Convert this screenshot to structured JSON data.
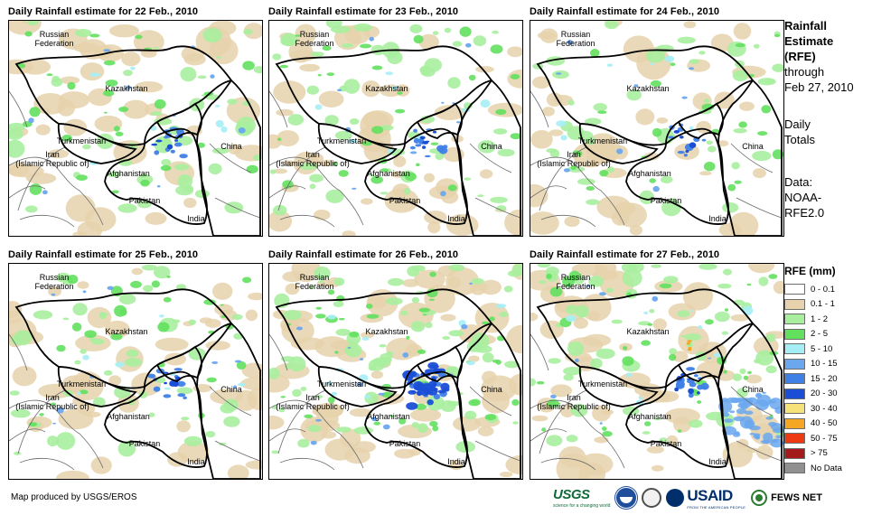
{
  "panels": [
    {
      "title": "Daily Rainfall estimate for 22 Feb., 2010",
      "seed": 11,
      "wet": 0.9
    },
    {
      "title": "Daily Rainfall estimate for 23 Feb., 2010",
      "seed": 23,
      "wet": 1.0
    },
    {
      "title": "Daily Rainfall estimate for 24 Feb., 2010",
      "seed": 37,
      "wet": 0.8
    },
    {
      "title": "Daily Rainfall estimate for 25 Feb., 2010",
      "seed": 41,
      "wet": 0.9
    },
    {
      "title": "Daily Rainfall estimate for 26 Feb., 2010",
      "seed": 53,
      "wet": 1.3
    },
    {
      "title": "Daily Rainfall estimate for 27 Feb., 2010",
      "seed": 67,
      "wet": 1.1
    }
  ],
  "map_labels": {
    "russia": "Russian\nFederation",
    "kazakhstan": "Kazakhstan",
    "turkmenistan": "Turkmenistan",
    "iran": "Iran\n(Islamic Republic of)",
    "afghanistan": "Afghanistan",
    "pakistan": "Pakistan",
    "china": "China",
    "india": "India"
  },
  "sidebar": {
    "title_line1": "Rainfall",
    "title_line2": "Estimate",
    "title_line3": "(RFE)",
    "through_line1": "through",
    "through_line2": "Feb 27, 2010",
    "totals_line1": "Daily",
    "totals_line2": "Totals",
    "data_line1": "Data:",
    "data_line2": "NOAA-",
    "data_line3": "RFE2.0"
  },
  "legend": {
    "title": "RFE (mm)",
    "items": [
      {
        "label": "0 - 0.1",
        "color": "#ffffff"
      },
      {
        "label": "0.1 - 1",
        "color": "#e6d2ac"
      },
      {
        "label": "1 - 2",
        "color": "#a8ee9e"
      },
      {
        "label": "2 - 5",
        "color": "#62e05e"
      },
      {
        "label": "5 - 10",
        "color": "#a6eef6"
      },
      {
        "label": "10 - 15",
        "color": "#6aa7ee"
      },
      {
        "label": "15 - 20",
        "color": "#3f7fe6"
      },
      {
        "label": "20 - 30",
        "color": "#1b4ed6"
      },
      {
        "label": "30 - 40",
        "color": "#f6e27a"
      },
      {
        "label": "40 - 50",
        "color": "#f5a623"
      },
      {
        "label": "50 - 75",
        "color": "#ee3a12"
      },
      {
        "label": "> 75",
        "color": "#a51a1a"
      },
      {
        "label": "No Data",
        "color": "#909090"
      }
    ]
  },
  "credit": "Map produced by USGS/EROS",
  "logos": {
    "usgs": "USGS",
    "usgs_tagline": "science for a changing world",
    "usaid": "USAID",
    "usaid_tagline": "FROM THE AMERICAN PEOPLE",
    "fews": "FEWS NET"
  },
  "colors": {
    "border_major": "#000000",
    "border_minor": "#6a6a6a"
  }
}
